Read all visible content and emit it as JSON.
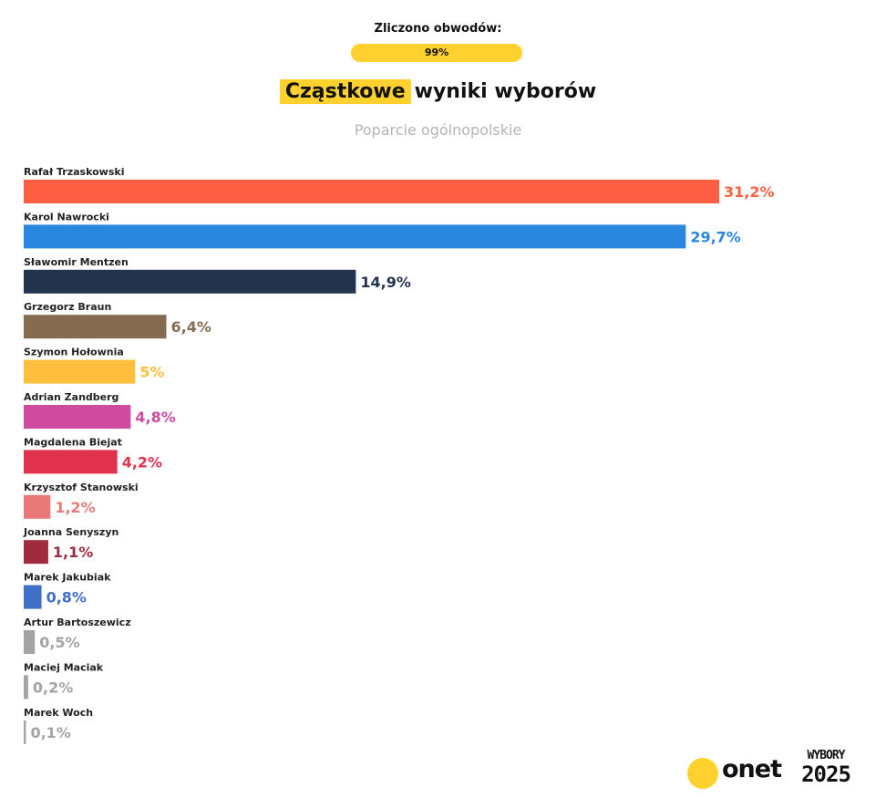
{
  "header": {
    "counted_label": "Zliczono obwodów:",
    "counted_value": "99%",
    "title_highlight": "Cząstkowe",
    "title_rest": "wyniki wyborów",
    "subtitle": "Poparcie ogólnopolskie"
  },
  "brand": {
    "logo_text": "onet",
    "badge_line1": "WYBORY",
    "badge_line2": "2025",
    "accent_color": "#ffd12e"
  },
  "chart_data": {
    "type": "bar",
    "orientation": "horizontal",
    "categories": [
      "Rafał Trzaskowski",
      "Karol Nawrocki",
      "Sławomir Mentzen",
      "Grzegorz Braun",
      "Szymon Hołownia",
      "Adrian Zandberg",
      "Magdalena Biejat",
      "Krzysztof Stanowski",
      "Joanna Senyszyn",
      "Marek Jakubiak",
      "Artur Bartoszewicz",
      "Maciej Maciak",
      "Marek Woch"
    ],
    "values": [
      31.2,
      29.7,
      14.9,
      6.4,
      5,
      4.8,
      4.2,
      1.2,
      1.1,
      0.8,
      0.5,
      0.2,
      0.1
    ],
    "value_labels": [
      "31,2%",
      "29,7%",
      "14,9%",
      "6,4%",
      "5%",
      "4,8%",
      "4,2%",
      "1,2%",
      "1,1%",
      "0,8%",
      "0,5%",
      "0,2%",
      "0,1%"
    ],
    "colors": [
      "#ff5f42",
      "#2a87e0",
      "#24344f",
      "#856b50",
      "#ffbf3c",
      "#d04aa0",
      "#e0314e",
      "#ea7a7a",
      "#a12a3e",
      "#3f6fc6",
      "#a4a4a4",
      "#a4a4a4",
      "#a4a4a4"
    ],
    "label_colors": [
      "#ff5f42",
      "#2a87e0",
      "#24344f",
      "#856b50",
      "#ffbf3c",
      "#d04aa0",
      "#e0314e",
      "#ea7a7a",
      "#a12a3e",
      "#3f6fc6",
      "#a4a4a4",
      "#a4a4a4",
      "#a4a4a4"
    ],
    "xlim": [
      0,
      31.2
    ],
    "title": "Cząstkowe wyniki wyborów",
    "subtitle": "Poparcie ogólnopolskie",
    "grid": false,
    "legend": "none"
  }
}
